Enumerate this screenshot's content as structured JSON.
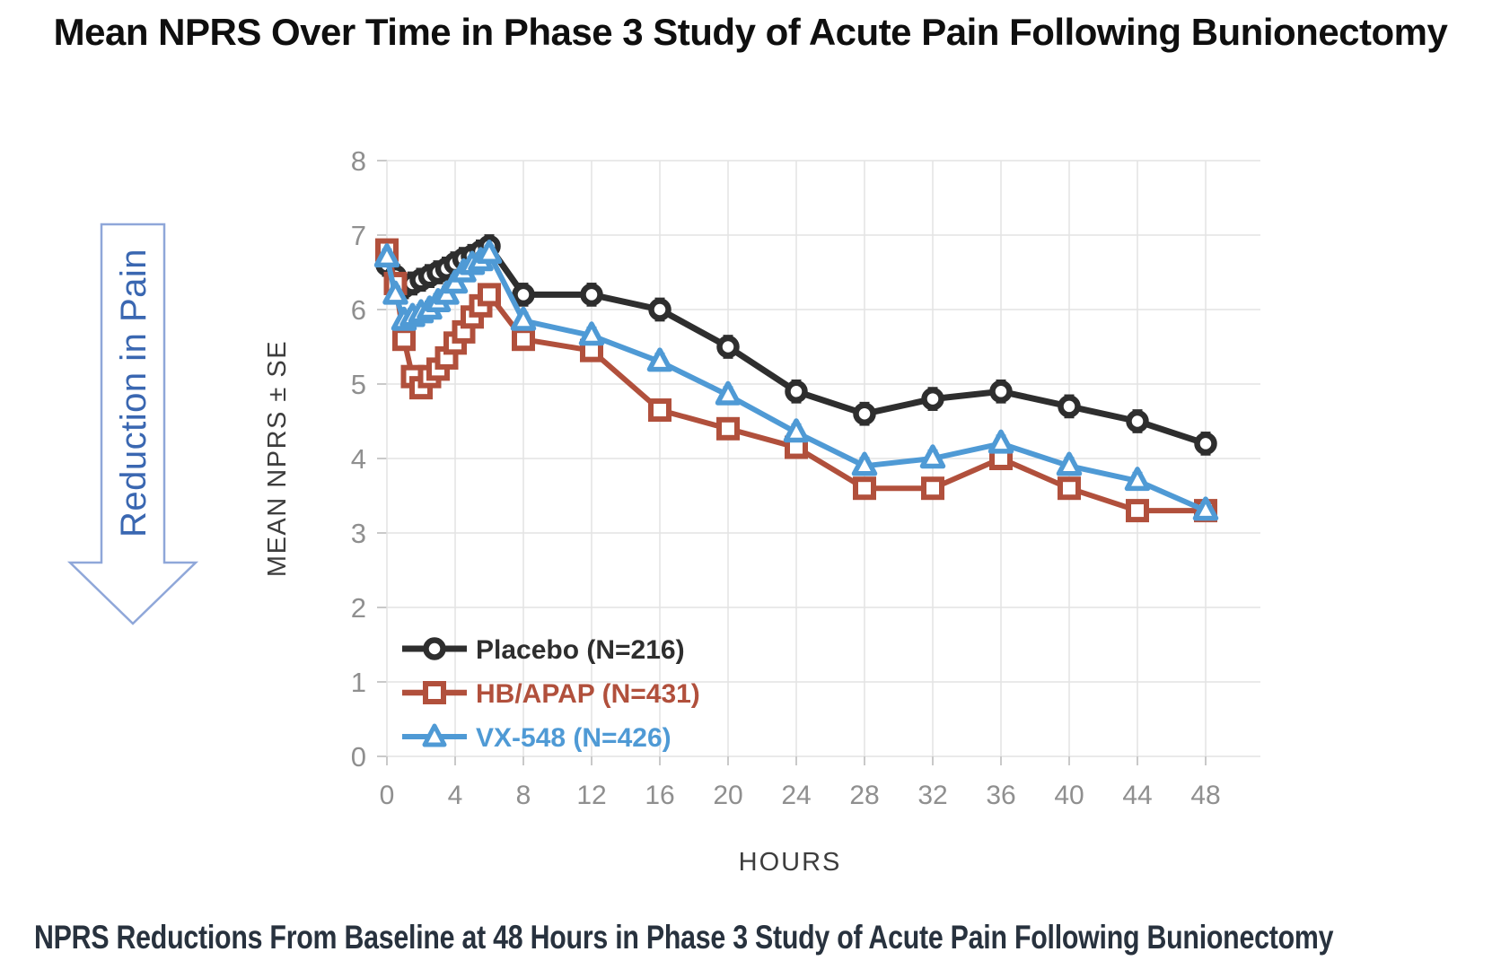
{
  "page": {
    "title": "Mean NPRS Over Time in Phase 3 Study of Acute Pain Following Bunionectomy",
    "caption": "NPRS Reductions From Baseline at 48 Hours in Phase 3 Study of Acute Pain Following Bunionectomy"
  },
  "arrow": {
    "label": "Reduction in Pain",
    "outline_color": "#8fa7d9",
    "text_color": "#3a67b1"
  },
  "colors": {
    "placebo": "#2e2e2e",
    "hb_apap": "#b1503c",
    "vx548": "#4f9ad5",
    "gridline": "#e3e3e3",
    "tick_stub": "#c9c9c9",
    "tick_text": "#8f8f8f",
    "axis_title_text": "#3d3d3d",
    "caption_text": "#28323e"
  },
  "chart_data": {
    "type": "line",
    "title": "",
    "xlabel": "HOURS",
    "ylabel": "MEAN NPRS ± SE",
    "xlim": [
      0,
      49.5
    ],
    "ylim": [
      0,
      8
    ],
    "x_ticks": [
      0,
      4,
      8,
      12,
      16,
      20,
      24,
      28,
      32,
      36,
      40,
      44,
      48
    ],
    "y_ticks": [
      0,
      1,
      2,
      3,
      4,
      5,
      6,
      7,
      8
    ],
    "grid": true,
    "legend_position": "inside-bottom-left",
    "x": [
      0,
      0.5,
      1,
      1.5,
      2,
      2.5,
      3,
      3.5,
      4,
      4.5,
      5,
      5.5,
      6,
      8,
      12,
      16,
      20,
      24,
      28,
      32,
      36,
      40,
      44,
      48
    ],
    "series": [
      {
        "name": "Placebo (N=216)",
        "slug": "placebo",
        "marker": "circle",
        "color": "#2e2e2e",
        "se": 0.15,
        "values": [
          6.6,
          6.45,
          6.3,
          6.35,
          6.4,
          6.45,
          6.5,
          6.55,
          6.62,
          6.68,
          6.72,
          6.78,
          6.85,
          6.2,
          6.2,
          6.0,
          5.5,
          4.9,
          4.6,
          4.8,
          4.9,
          4.7,
          4.5,
          4.2
        ]
      },
      {
        "name": "HB/APAP (N=431)",
        "slug": "hb-apap",
        "marker": "square",
        "color": "#b1503c",
        "se": 0.08,
        "values": [
          6.8,
          6.35,
          5.6,
          5.1,
          4.95,
          5.1,
          5.2,
          5.35,
          5.55,
          5.7,
          5.9,
          6.05,
          6.2,
          5.6,
          5.45,
          4.65,
          4.4,
          4.15,
          3.6,
          3.6,
          4.0,
          3.6,
          3.3,
          3.3
        ]
      },
      {
        "name": "VX-548 (N=426)",
        "slug": "vx-548",
        "marker": "triangle",
        "color": "#4f9ad5",
        "se": 0.11,
        "values": [
          6.7,
          6.2,
          5.85,
          5.9,
          5.95,
          6.0,
          6.1,
          6.2,
          6.35,
          6.5,
          6.6,
          6.65,
          6.75,
          5.85,
          5.65,
          5.3,
          4.85,
          4.35,
          3.9,
          4.0,
          4.2,
          3.9,
          3.7,
          3.3
        ]
      }
    ]
  }
}
